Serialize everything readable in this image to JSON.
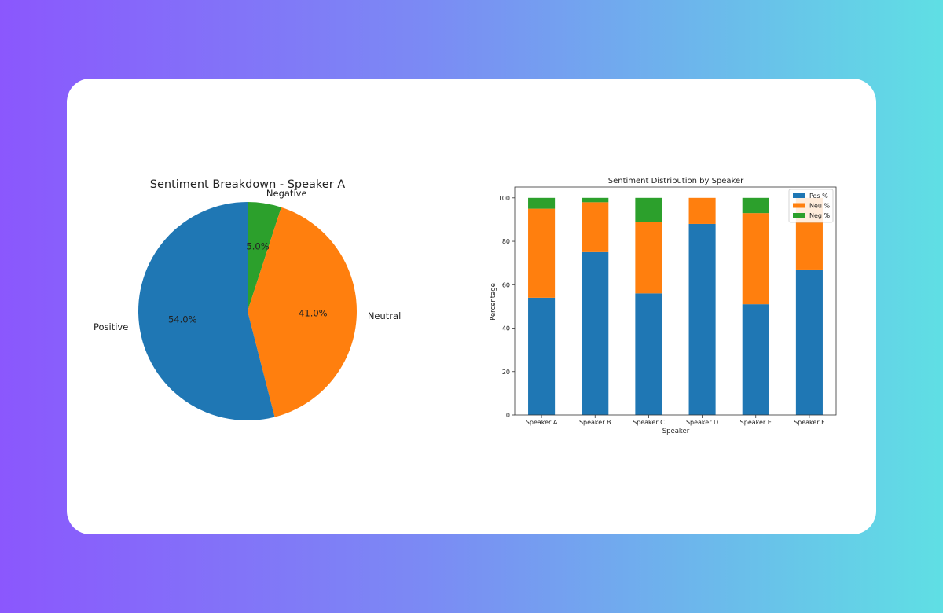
{
  "colors": {
    "positive": "#1f77b4",
    "neutral": "#ff7f0e",
    "negative": "#2ca02c",
    "axis": "#333333"
  },
  "chart_data": [
    {
      "type": "pie",
      "title": "Sentiment Breakdown - Speaker A",
      "slices": [
        {
          "label": "Negative",
          "value": 5.0,
          "pct_label": "5.0%",
          "color": "#2ca02c"
        },
        {
          "label": "Neutral",
          "value": 41.0,
          "pct_label": "41.0%",
          "color": "#ff7f0e"
        },
        {
          "label": "Positive",
          "value": 54.0,
          "pct_label": "54.0%",
          "color": "#1f77b4"
        }
      ],
      "start_angle_deg": 90,
      "direction": "clockwise"
    },
    {
      "type": "bar",
      "stacked": true,
      "title": "Sentiment Distribution by Speaker",
      "xlabel": "Speaker",
      "ylabel": "Percentage",
      "categories": [
        "Speaker A",
        "Speaker B",
        "Speaker C",
        "Speaker D",
        "Speaker E",
        "Speaker F"
      ],
      "series": [
        {
          "name": "Pos %",
          "color": "#1f77b4",
          "values": [
            54,
            75,
            56,
            88,
            51,
            67
          ]
        },
        {
          "name": "Neu %",
          "color": "#ff7f0e",
          "values": [
            41,
            23,
            33,
            12,
            42,
            33
          ]
        },
        {
          "name": "Neg %",
          "color": "#2ca02c",
          "values": [
            5,
            2,
            11,
            0,
            7,
            0
          ]
        }
      ],
      "ylim": [
        0,
        105
      ],
      "yticks": [
        0,
        20,
        40,
        60,
        80,
        100
      ],
      "legend": "top-right",
      "grid": false
    }
  ]
}
